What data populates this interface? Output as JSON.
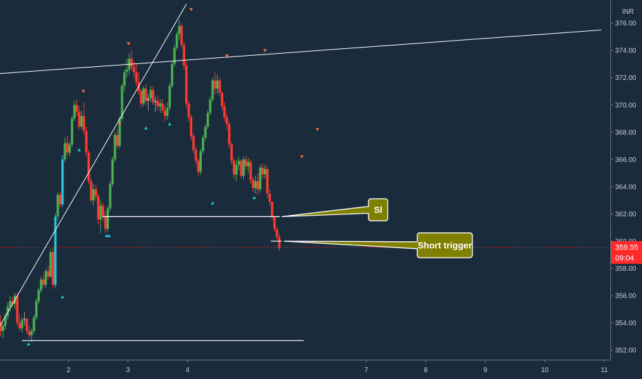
{
  "chart_data": {
    "type": "candlestick",
    "currency": "INR",
    "ylim": [
      351.3,
      377.5
    ],
    "xlim": [
      0.85,
      11.1
    ],
    "y_ticks": [
      "352.00",
      "354.00",
      "356.00",
      "358.00",
      "360.00",
      "362.00",
      "364.00",
      "366.00",
      "368.00",
      "370.00",
      "372.00",
      "374.00",
      "376.00"
    ],
    "x_ticks": [
      "2",
      "3",
      "4",
      "7",
      "8",
      "9",
      "10",
      "11"
    ],
    "x_tick_values": [
      2,
      3,
      4,
      7,
      8,
      9,
      10,
      11
    ],
    "last_price": "359.55",
    "countdown": "09:04",
    "colors": {
      "background": "#1a2b3c",
      "up": "#4caf50",
      "down": "#ff3b30",
      "up_large": "#26c6da",
      "neutral": "#9e9e9e",
      "price_line": "#ff2a2a",
      "callout": "#808000",
      "drawing": "#ffffff"
    },
    "candles": [
      [
        0.86,
        354.1,
        354.6,
        353.0,
        353.4
      ],
      [
        0.9,
        353.4,
        354.0,
        352.9,
        353.8
      ],
      [
        0.94,
        353.8,
        354.7,
        353.5,
        354.5
      ],
      [
        0.98,
        354.5,
        355.5,
        354.2,
        355.2
      ],
      [
        1.02,
        355.2,
        356.0,
        354.8,
        355.6
      ],
      [
        1.06,
        355.6,
        355.9,
        355.2,
        355.4
      ],
      [
        1.1,
        355.4,
        356.2,
        355.0,
        356.0
      ],
      [
        1.14,
        356.0,
        356.2,
        353.8,
        354.0
      ],
      [
        1.18,
        354.0,
        354.6,
        353.4,
        353.6
      ],
      [
        1.22,
        353.6,
        354.4,
        353.3,
        354.2
      ],
      [
        1.26,
        354.2,
        354.8,
        353.8,
        354.3
      ],
      [
        1.3,
        354.3,
        354.4,
        353.2,
        353.4
      ],
      [
        1.34,
        353.4,
        353.8,
        352.9,
        353.1
      ],
      [
        1.38,
        353.1,
        353.6,
        352.6,
        353.4
      ],
      [
        1.42,
        353.4,
        354.6,
        353.2,
        354.4
      ],
      [
        1.46,
        354.4,
        355.8,
        354.2,
        355.6
      ],
      [
        1.5,
        355.6,
        356.6,
        355.4,
        356.4
      ],
      [
        1.54,
        356.4,
        357.4,
        356.2,
        357.2
      ],
      [
        1.58,
        357.2,
        357.6,
        356.6,
        356.8
      ],
      [
        1.62,
        356.8,
        358.0,
        356.6,
        357.8
      ],
      [
        1.66,
        357.8,
        358.2,
        357.2,
        357.4
      ],
      [
        1.7,
        357.4,
        359.4,
        357.3,
        359.2
      ],
      [
        1.74,
        359.2,
        359.5,
        356.5,
        356.8
      ],
      [
        1.78,
        356.8,
        362.0,
        356.6,
        361.8
      ],
      [
        1.82,
        361.8,
        363.6,
        361.5,
        363.4
      ],
      [
        1.86,
        363.4,
        363.6,
        362.4,
        362.7
      ],
      [
        1.9,
        362.7,
        366.3,
        362.5,
        366.0
      ],
      [
        1.94,
        366.0,
        367.6,
        365.8,
        367.2
      ],
      [
        1.98,
        367.2,
        367.7,
        366.3,
        366.5
      ],
      [
        2.02,
        366.5,
        367.3,
        366.2,
        367.1
      ],
      [
        2.06,
        367.1,
        369.2,
        366.9,
        369.0
      ],
      [
        2.1,
        369.0,
        370.3,
        368.8,
        370.0
      ],
      [
        2.14,
        370.0,
        370.4,
        369.2,
        369.5
      ],
      [
        2.18,
        369.5,
        369.9,
        368.2,
        368.4
      ],
      [
        2.22,
        368.4,
        369.6,
        368.2,
        369.2
      ],
      [
        2.26,
        369.2,
        370.2,
        367.8,
        368.1
      ],
      [
        2.3,
        368.1,
        368.4,
        366.2,
        366.5
      ],
      [
        2.34,
        366.5,
        366.7,
        364.2,
        364.4
      ],
      [
        2.38,
        364.4,
        364.6,
        362.8,
        363.0
      ],
      [
        2.42,
        363.0,
        364.2,
        362.6,
        363.8
      ],
      [
        2.46,
        363.8,
        364.1,
        363.0,
        363.3
      ],
      [
        2.5,
        363.3,
        363.5,
        361.2,
        361.6
      ],
      [
        2.54,
        361.6,
        363.0,
        360.6,
        362.6
      ],
      [
        2.58,
        362.6,
        362.8,
        361.5,
        361.8
      ],
      [
        2.62,
        361.8,
        362.2,
        360.6,
        360.9
      ],
      [
        2.66,
        360.9,
        362.6,
        360.7,
        362.4
      ],
      [
        2.7,
        362.4,
        364.4,
        362.2,
        364.2
      ],
      [
        2.74,
        364.2,
        366.2,
        364.0,
        366.0
      ],
      [
        2.78,
        366.0,
        368.0,
        365.8,
        367.8
      ],
      [
        2.82,
        367.8,
        368.2,
        366.8,
        367.0
      ],
      [
        2.86,
        367.0,
        369.2,
        366.8,
        369.0
      ],
      [
        2.9,
        369.0,
        371.6,
        368.8,
        371.4
      ],
      [
        2.94,
        371.4,
        372.6,
        371.0,
        372.4
      ],
      [
        2.98,
        372.4,
        373.4,
        372.0,
        372.6
      ],
      [
        3.02,
        372.6,
        373.8,
        372.2,
        373.4
      ],
      [
        3.06,
        373.4,
        374.0,
        372.5,
        372.8
      ],
      [
        3.1,
        372.8,
        373.2,
        372.0,
        372.4
      ],
      [
        3.14,
        372.4,
        373.0,
        371.4,
        371.7
      ],
      [
        3.18,
        371.7,
        372.4,
        370.8,
        371.0
      ],
      [
        3.22,
        371.0,
        371.2,
        369.8,
        370.1
      ],
      [
        3.26,
        370.1,
        371.4,
        369.9,
        371.2
      ],
      [
        3.3,
        371.2,
        371.5,
        370.0,
        370.3
      ],
      [
        3.34,
        370.3,
        370.8,
        369.6,
        370.5
      ],
      [
        3.38,
        370.5,
        371.4,
        370.2,
        371.1
      ],
      [
        3.42,
        371.1,
        371.4,
        370.0,
        370.2
      ],
      [
        3.46,
        370.2,
        370.6,
        369.5,
        370.3
      ],
      [
        3.5,
        370.3,
        370.7,
        369.6,
        369.9
      ],
      [
        3.54,
        369.9,
        370.4,
        369.4,
        370.1
      ],
      [
        3.58,
        370.1,
        370.4,
        369.4,
        369.6
      ],
      [
        3.62,
        369.6,
        370.0,
        368.8,
        369.2
      ],
      [
        3.66,
        369.2,
        370.2,
        368.9,
        369.8
      ],
      [
        3.7,
        369.8,
        371.6,
        369.6,
        371.4
      ],
      [
        3.74,
        371.4,
        373.2,
        371.2,
        373.0
      ],
      [
        3.78,
        373.0,
        374.4,
        372.8,
        374.2
      ],
      [
        3.82,
        374.2,
        375.4,
        374.0,
        375.2
      ],
      [
        3.86,
        375.2,
        376.2,
        374.8,
        375.8
      ],
      [
        3.9,
        375.8,
        376.0,
        374.2,
        374.4
      ],
      [
        3.94,
        374.4,
        374.6,
        372.6,
        372.9
      ],
      [
        3.98,
        372.9,
        373.2,
        369.8,
        370.1
      ],
      [
        4.02,
        370.1,
        370.3,
        368.8,
        369.1
      ],
      [
        4.06,
        369.1,
        369.3,
        367.4,
        367.7
      ],
      [
        4.1,
        367.7,
        367.9,
        366.4,
        366.7
      ],
      [
        4.14,
        366.7,
        366.9,
        365.6,
        365.9
      ],
      [
        4.18,
        365.9,
        366.1,
        364.8,
        365.1
      ],
      [
        4.22,
        365.1,
        366.8,
        364.9,
        366.6
      ],
      [
        4.26,
        366.6,
        367.8,
        366.4,
        367.6
      ],
      [
        4.3,
        367.6,
        368.6,
        367.4,
        368.4
      ],
      [
        4.34,
        368.4,
        369.6,
        368.2,
        369.4
      ],
      [
        4.38,
        369.4,
        370.6,
        369.2,
        370.4
      ],
      [
        4.42,
        370.4,
        372.0,
        370.2,
        371.8
      ],
      [
        4.46,
        371.8,
        372.4,
        370.8,
        371.2
      ],
      [
        4.5,
        371.2,
        372.2,
        370.8,
        371.8
      ],
      [
        4.54,
        371.8,
        372.0,
        370.6,
        370.9
      ],
      [
        4.58,
        370.9,
        371.0,
        369.6,
        369.9
      ],
      [
        4.62,
        369.9,
        370.2,
        368.8,
        369.1
      ],
      [
        4.66,
        369.1,
        369.4,
        368.2,
        368.6
      ],
      [
        4.7,
        368.6,
        368.8,
        366.8,
        367.1
      ],
      [
        4.74,
        367.1,
        367.3,
        365.6,
        365.9
      ],
      [
        4.78,
        365.9,
        366.1,
        364.6,
        364.9
      ],
      [
        4.82,
        364.9,
        366.0,
        364.4,
        365.6
      ],
      [
        4.86,
        365.6,
        366.2,
        365.2,
        365.9
      ],
      [
        4.9,
        365.9,
        366.0,
        364.6,
        364.8
      ],
      [
        4.94,
        364.8,
        366.2,
        364.5,
        366.0
      ],
      [
        4.98,
        366.0,
        366.3,
        365.2,
        365.5
      ],
      [
        5.02,
        365.5,
        366.1,
        365.0,
        365.8
      ],
      [
        5.06,
        365.8,
        366.0,
        364.2,
        364.5
      ],
      [
        5.1,
        364.5,
        364.7,
        363.6,
        363.9
      ],
      [
        5.14,
        363.9,
        364.8,
        363.5,
        364.4
      ],
      [
        5.18,
        364.4,
        365.0,
        363.4,
        363.8
      ],
      [
        5.22,
        363.8,
        365.6,
        363.6,
        365.4
      ],
      [
        5.26,
        365.4,
        365.7,
        364.6,
        364.9
      ],
      [
        5.3,
        364.9,
        365.6,
        364.6,
        365.3
      ],
      [
        5.34,
        365.3,
        365.5,
        363.2,
        363.5
      ],
      [
        5.38,
        363.5,
        363.8,
        362.6,
        362.9
      ],
      [
        5.42,
        362.9,
        362.9,
        361.6,
        361.8
      ],
      [
        5.46,
        361.8,
        361.8,
        360.7,
        360.9
      ],
      [
        5.5,
        360.9,
        361.0,
        360.1,
        360.3
      ],
      [
        5.54,
        360.3,
        360.6,
        359.3,
        359.5
      ]
    ],
    "horizontal_levels": [
      {
        "y": 361.8,
        "x_start": 2.57,
        "x_end": 5.55
      },
      {
        "y": 352.7,
        "x_start": 1.22,
        "x_end": 5.95
      },
      {
        "y": 360.0,
        "x_start": 5.4,
        "x_end": 5.58
      }
    ],
    "trend_lines": [
      {
        "x1": 0.85,
        "y1": 353.8,
        "x2": 3.98,
        "y2": 377.4
      },
      {
        "x1": 0.85,
        "y1": 372.3,
        "x2": 10.95,
        "y2": 375.5
      }
    ],
    "markers_up": [
      [
        1.33,
        352.45
      ],
      [
        1.9,
        355.9
      ],
      [
        2.18,
        366.7
      ],
      [
        2.64,
        360.4
      ],
      [
        2.68,
        360.4
      ],
      [
        3.3,
        368.3
      ],
      [
        3.7,
        368.6
      ],
      [
        4.42,
        362.8
      ],
      [
        5.12,
        363.2
      ]
    ],
    "markers_down": [
      [
        2.25,
        371.0
      ],
      [
        2.86,
        368.6
      ],
      [
        3.01,
        374.5
      ],
      [
        4.06,
        377.0
      ],
      [
        4.66,
        373.6
      ],
      [
        5.3,
        374.0
      ],
      [
        5.92,
        366.2
      ],
      [
        6.18,
        368.2
      ]
    ],
    "annotations": [
      {
        "text": "Sl",
        "tip": [
          5.58,
          361.8
        ],
        "box_center": [
          7.2,
          362.3
        ]
      },
      {
        "text": "Short trigger",
        "tip": [
          5.62,
          360.0
        ],
        "box_center": [
          8.32,
          359.7
        ]
      }
    ]
  }
}
